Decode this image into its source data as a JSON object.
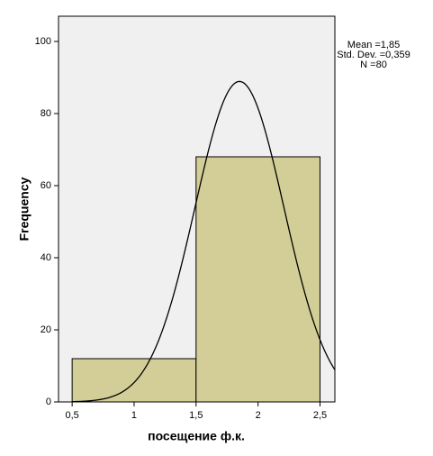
{
  "chart_data": {
    "type": "histogram",
    "x_label": "посещение ф.к.",
    "y_label": "Frequency",
    "bins": [
      0.5,
      1.5,
      2.5
    ],
    "values": [
      12,
      68
    ],
    "color": "#d3ce97",
    "xlim": [
      0.39,
      2.62
    ],
    "xticks": [
      {
        "value": 0.5,
        "label": "0,5"
      },
      1,
      {
        "value": 1.5,
        "label": "1,5"
      },
      2,
      {
        "value": 2.5,
        "label": "2,5"
      }
    ],
    "ylim": [
      0,
      107
    ],
    "yticks": [
      0,
      20,
      40,
      60,
      80,
      100
    ],
    "stats": [
      {
        "value": 1.85,
        "label": "Mean =1,85"
      },
      {
        "value": 0.359,
        "label": "Std. Dev. =0,359"
      },
      {
        "value": 80,
        "label": "N =80"
      }
    ]
  }
}
